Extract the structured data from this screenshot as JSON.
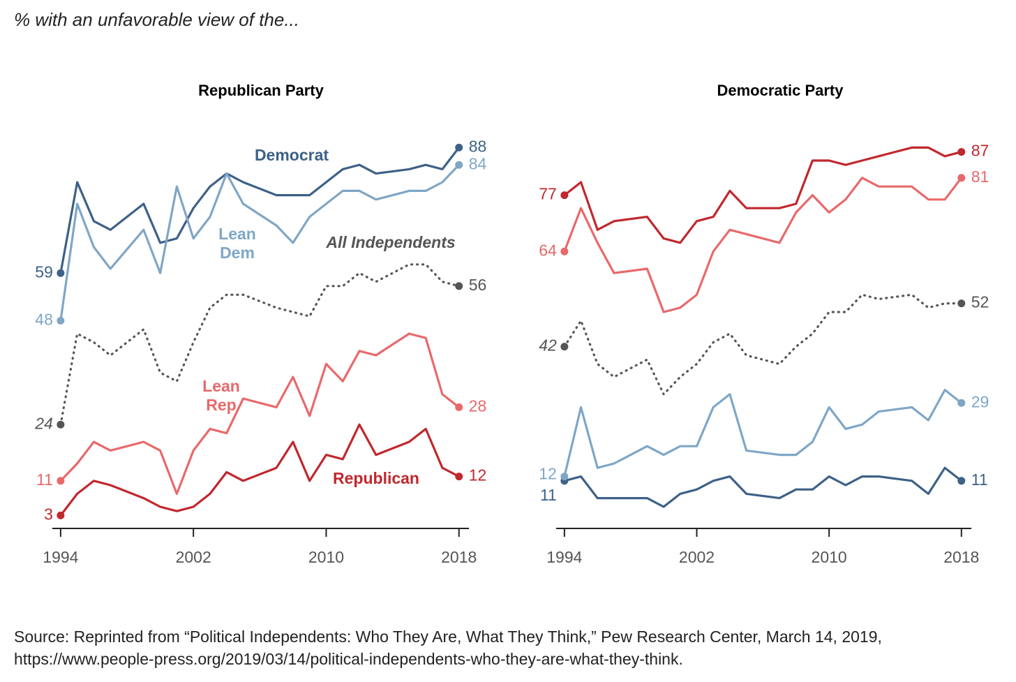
{
  "title": "% with an unfavorable view of the...",
  "source": [
    "Source: Reprinted from “Political Independents: Who They Are, What They Think,” Pew Research Center, March 14, 2019,",
    "https://www.people-press.org/2019/03/14/political-independents-who-they-are-what-they-think."
  ],
  "chart_data": [
    {
      "type": "line",
      "title": "Republican Party",
      "x": [
        1994,
        1995,
        1996,
        1997,
        1999,
        2000,
        2001,
        2002,
        2003,
        2004,
        2005,
        2007,
        2008,
        2009,
        2010,
        2011,
        2012,
        2013,
        2015,
        2016,
        2017,
        2018
      ],
      "xlim": [
        1993.5,
        2018.6
      ],
      "xticks": [
        1994,
        2002,
        2010,
        2018
      ],
      "ylim": [
        0,
        100
      ],
      "series": [
        {
          "name": "Democrat",
          "color": "#3d6187",
          "values": [
            59,
            80,
            71,
            69,
            75,
            66,
            67,
            74,
            79,
            82,
            80,
            77,
            77,
            77,
            80,
            83,
            84,
            82,
            83,
            84,
            83,
            88
          ]
        },
        {
          "name": "Lean Dem",
          "color": "#7fa6c6",
          "values": [
            48,
            75,
            65,
            60,
            69,
            59,
            79,
            67,
            72,
            82,
            75,
            70,
            66,
            72,
            75,
            78,
            78,
            76,
            78,
            78,
            80,
            84
          ]
        },
        {
          "name": "All Independents",
          "color": "#555555",
          "style": "dotted",
          "values": [
            24,
            45,
            43,
            40,
            46,
            36,
            34,
            43,
            51,
            54,
            54,
            51,
            50,
            49,
            56,
            56,
            59,
            57,
            61,
            61,
            57,
            56
          ]
        },
        {
          "name": "Lean Rep",
          "color": "#e8696b",
          "values": [
            11,
            15,
            20,
            18,
            20,
            18,
            8,
            18,
            23,
            22,
            30,
            28,
            35,
            26,
            38,
            34,
            41,
            40,
            45,
            44,
            31,
            28
          ]
        },
        {
          "name": "Republican",
          "color": "#c0282d",
          "values": [
            3,
            8,
            11,
            10,
            7,
            5,
            4,
            5,
            8,
            13,
            11,
            14,
            20,
            11,
            17,
            16,
            24,
            17,
            20,
            23,
            14,
            12
          ]
        }
      ]
    },
    {
      "type": "line",
      "title": "Democratic Party",
      "x": [
        1994,
        1995,
        1996,
        1997,
        1999,
        2000,
        2001,
        2002,
        2003,
        2004,
        2005,
        2007,
        2008,
        2009,
        2010,
        2011,
        2012,
        2013,
        2015,
        2016,
        2017,
        2018
      ],
      "xlim": [
        1993.5,
        2018.6
      ],
      "xticks": [
        1994,
        2002,
        2010,
        2018
      ],
      "ylim": [
        0,
        100
      ],
      "series": [
        {
          "color": "#3d6187",
          "values": [
            11,
            12,
            7,
            7,
            7,
            5,
            8,
            9,
            11,
            12,
            8,
            7,
            9,
            9,
            12,
            10,
            12,
            12,
            11,
            8,
            14,
            11
          ]
        },
        {
          "color": "#7fa6c6",
          "values": [
            12,
            28,
            14,
            15,
            19,
            17,
            19,
            19,
            28,
            31,
            18,
            17,
            17,
            20,
            28,
            23,
            24,
            27,
            28,
            25,
            32,
            29
          ]
        },
        {
          "color": "#555555",
          "style": "dotted",
          "values": [
            42,
            48,
            38,
            35,
            39,
            31,
            35,
            38,
            43,
            45,
            40,
            38,
            42,
            45,
            50,
            50,
            54,
            53,
            54,
            51,
            52,
            52
          ]
        },
        {
          "color": "#e8696b",
          "values": [
            64,
            74,
            66,
            59,
            60,
            50,
            51,
            54,
            64,
            69,
            68,
            66,
            73,
            77,
            73,
            76,
            81,
            79,
            79,
            76,
            76,
            81
          ]
        },
        {
          "color": "#c0282d",
          "values": [
            77,
            80,
            69,
            71,
            72,
            67,
            66,
            71,
            72,
            78,
            74,
            74,
            75,
            85,
            85,
            84,
            85,
            86,
            88,
            88,
            86,
            87
          ]
        }
      ]
    }
  ]
}
